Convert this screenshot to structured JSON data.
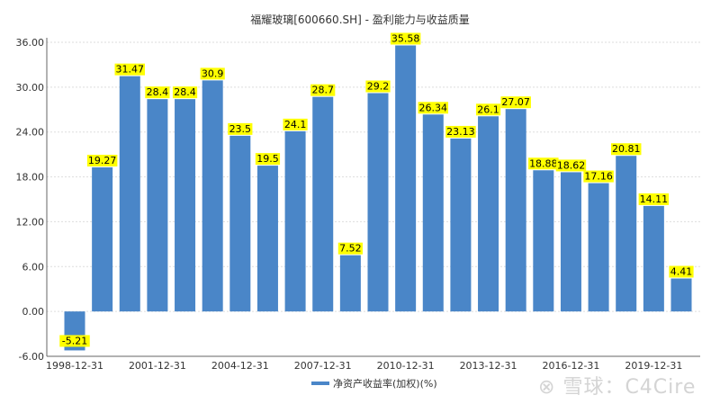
{
  "chart_data": {
    "type": "bar",
    "title": "福耀玻璃[600660.SH] - 盈利能力与收益质量",
    "categories": [
      "1998-12-31",
      "1999-12-31",
      "2000-12-31",
      "2001-12-31",
      "2002-12-31",
      "2003-12-31",
      "2004-12-31",
      "2005-12-31",
      "2006-12-31",
      "2007-12-31",
      "2008-12-31",
      "2009-12-31",
      "2010-12-31",
      "2011-12-31",
      "2012-12-31",
      "2013-12-31",
      "2014-12-31",
      "2015-12-31",
      "2016-12-31",
      "2017-12-31",
      "2018-12-31",
      "2019-12-31",
      "2020-12-31"
    ],
    "x_tick_labels": [
      "1998-12-31",
      "2001-12-31",
      "2004-12-31",
      "2007-12-31",
      "2010-12-31",
      "2013-12-31",
      "2016-12-31",
      "2019-12-31"
    ],
    "series": [
      {
        "name": "净资产收益率(加权)(%)",
        "values": [
          -5.21,
          19.27,
          31.47,
          28.4,
          28.4,
          30.9,
          23.5,
          19.5,
          24.1,
          28.7,
          7.52,
          29.2,
          35.58,
          26.34,
          23.13,
          26.1,
          27.07,
          18.88,
          18.62,
          17.16,
          20.81,
          14.11,
          4.41
        ],
        "color": "#4a86c8"
      }
    ],
    "y_ticks": [
      "-6.00",
      "0.00",
      "6.00",
      "12.00",
      "18.00",
      "24.00",
      "30.00",
      "36.00"
    ],
    "ylim": [
      -6,
      36
    ],
    "grid": true,
    "legend_position": "bottom",
    "data_label_bg": "#ffff00"
  },
  "watermark": "雪球：C4Cire"
}
